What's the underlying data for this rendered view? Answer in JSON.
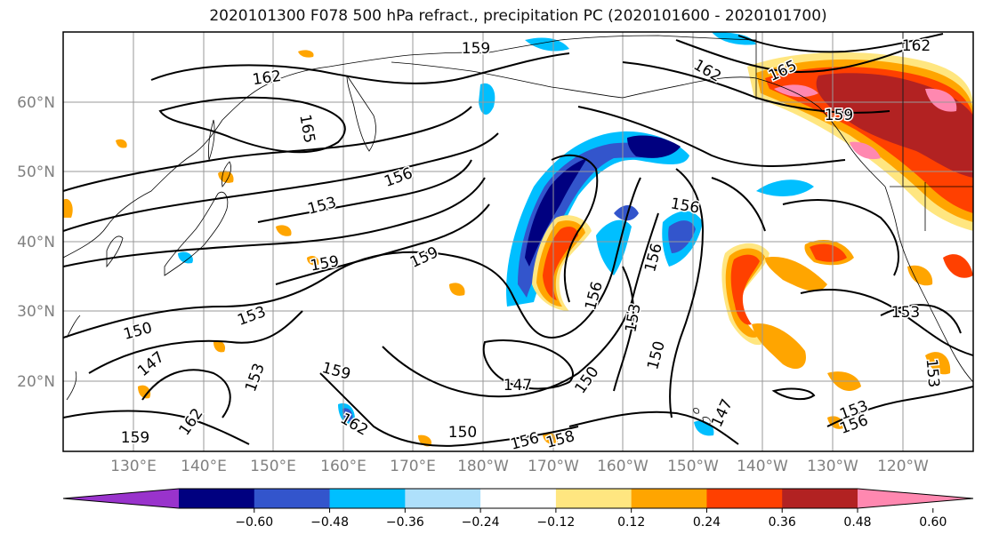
{
  "title": "2020101300 F078 500 hPa refract., precipitation PC (2020101600 - 2020101700)",
  "map": {
    "lat_labels": [
      "60°N",
      "50°N",
      "40°N",
      "30°N",
      "20°N"
    ],
    "lon_labels": [
      "130°E",
      "140°E",
      "150°E",
      "160°E",
      "170°E",
      "180°W",
      "170°W",
      "160°W",
      "150°W",
      "140°W",
      "130°W",
      "120°W"
    ],
    "contour_labels": [
      "162",
      "159",
      "165",
      "162",
      "165",
      "162",
      "159",
      "156",
      "153",
      "159",
      "159",
      "156",
      "156",
      "153",
      "150",
      "153",
      "150",
      "147",
      "153",
      "159",
      "162",
      "162",
      "159",
      "147",
      "150",
      "150",
      "156",
      "158",
      "147",
      "153",
      "156",
      "153",
      "153",
      "156"
    ]
  },
  "colorbar": {
    "colors": [
      "#9933cc",
      "#000080",
      "#3355cc",
      "#00bfff",
      "#aee0fb",
      "#ffffff",
      "#ffe680",
      "#ffa500",
      "#ff4000",
      "#b22222",
      "#ff88b0"
    ],
    "tick_labels": [
      "−0.60",
      "−0.48",
      "−0.36",
      "−0.24",
      "−0.12",
      "0.12",
      "0.24",
      "0.36",
      "0.48",
      "0.60"
    ]
  }
}
